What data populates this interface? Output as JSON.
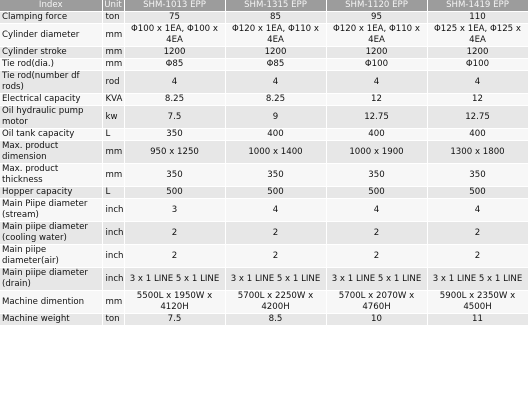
{
  "header": {
    "index": "Index",
    "unit": "Unit",
    "models": [
      "SHM-1013 EPP",
      "SHM-1315 EPP",
      "SHM-1120 EPP",
      "SHM-1419 EPP"
    ]
  },
  "rows": [
    {
      "name": "Clamping force",
      "unit": "ton",
      "values": [
        "75",
        "85",
        "95",
        "110"
      ]
    },
    {
      "name": "Cylinder diameter",
      "unit": "mm",
      "values": [
        "Φ100 x 1EA, Φ100 x 4EA",
        "Φ120 x 1EA, Φ110 x 4EA",
        "Φ120 x 1EA, Φ110 x 4EA",
        "Φ125 x 1EA, Φ125 x 4EA"
      ]
    },
    {
      "name": "Cylinder stroke",
      "unit": "mm",
      "values": [
        "1200",
        "1200",
        "1200",
        "1200"
      ]
    },
    {
      "name": "Tie rod(dia.)",
      "unit": "mm",
      "values": [
        "Φ85",
        "Φ85",
        "Φ100",
        "Φ100"
      ]
    },
    {
      "name": "Tie rod(number df rods)",
      "unit": "rod",
      "values": [
        "4",
        "4",
        "4",
        "4"
      ]
    },
    {
      "name": "Electrical capacity",
      "unit": "KVA",
      "values": [
        "8.25",
        "8.25",
        "12",
        "12"
      ]
    },
    {
      "name": "Oil hydraulic pump motor",
      "unit": "kw",
      "values": [
        "7.5",
        "9",
        "12.75",
        "12.75"
      ]
    },
    {
      "name": "Oil tank capacity",
      "unit": "L",
      "values": [
        "350",
        "400",
        "400",
        "400"
      ]
    },
    {
      "name": "Max. product dimension",
      "unit": "mm",
      "values": [
        "950 x 1250",
        "1000 x 1400",
        "1000 x 1900",
        "1300 x 1800"
      ]
    },
    {
      "name": "Max. product thickness",
      "unit": "mm",
      "values": [
        "350",
        "350",
        "350",
        "350"
      ]
    },
    {
      "name": "Hopper capacity",
      "unit": "L",
      "values": [
        "500",
        "500",
        "500",
        "500"
      ]
    },
    {
      "name": "Main Piipe diameter (stream)",
      "unit": "inch",
      "values": [
        "3",
        "4",
        "4",
        "4"
      ]
    },
    {
      "name": "Main piipe diameter (cooling water)",
      "unit": "inch",
      "values": [
        "2",
        "2",
        "2",
        "2"
      ]
    },
    {
      "name": "Main piipe diameter(air)",
      "unit": "inch",
      "values": [
        "2",
        "2",
        "2",
        "2"
      ]
    },
    {
      "name": "Main piipe diameter (drain)",
      "unit": "inch",
      "values": [
        "3 x 1 LINE 5 x 1 LINE",
        "3 x 1 LINE 5 x 1 LINE",
        "3 x 1 LINE 5 x 1 LINE",
        "3 x 1 LINE 5 x 1 LINE"
      ]
    },
    {
      "name": "Machine dimention",
      "unit": "mm",
      "values": [
        "5500L x 1950W x 4120H",
        "5700L x 2250W x 4200H",
        "5700L x 2070W x 4760H",
        "5900L x 2350W x 4500H"
      ]
    },
    {
      "name": "Machine weight",
      "unit": "ton",
      "values": [
        "7.5",
        "8.5",
        "10",
        "11"
      ]
    }
  ]
}
